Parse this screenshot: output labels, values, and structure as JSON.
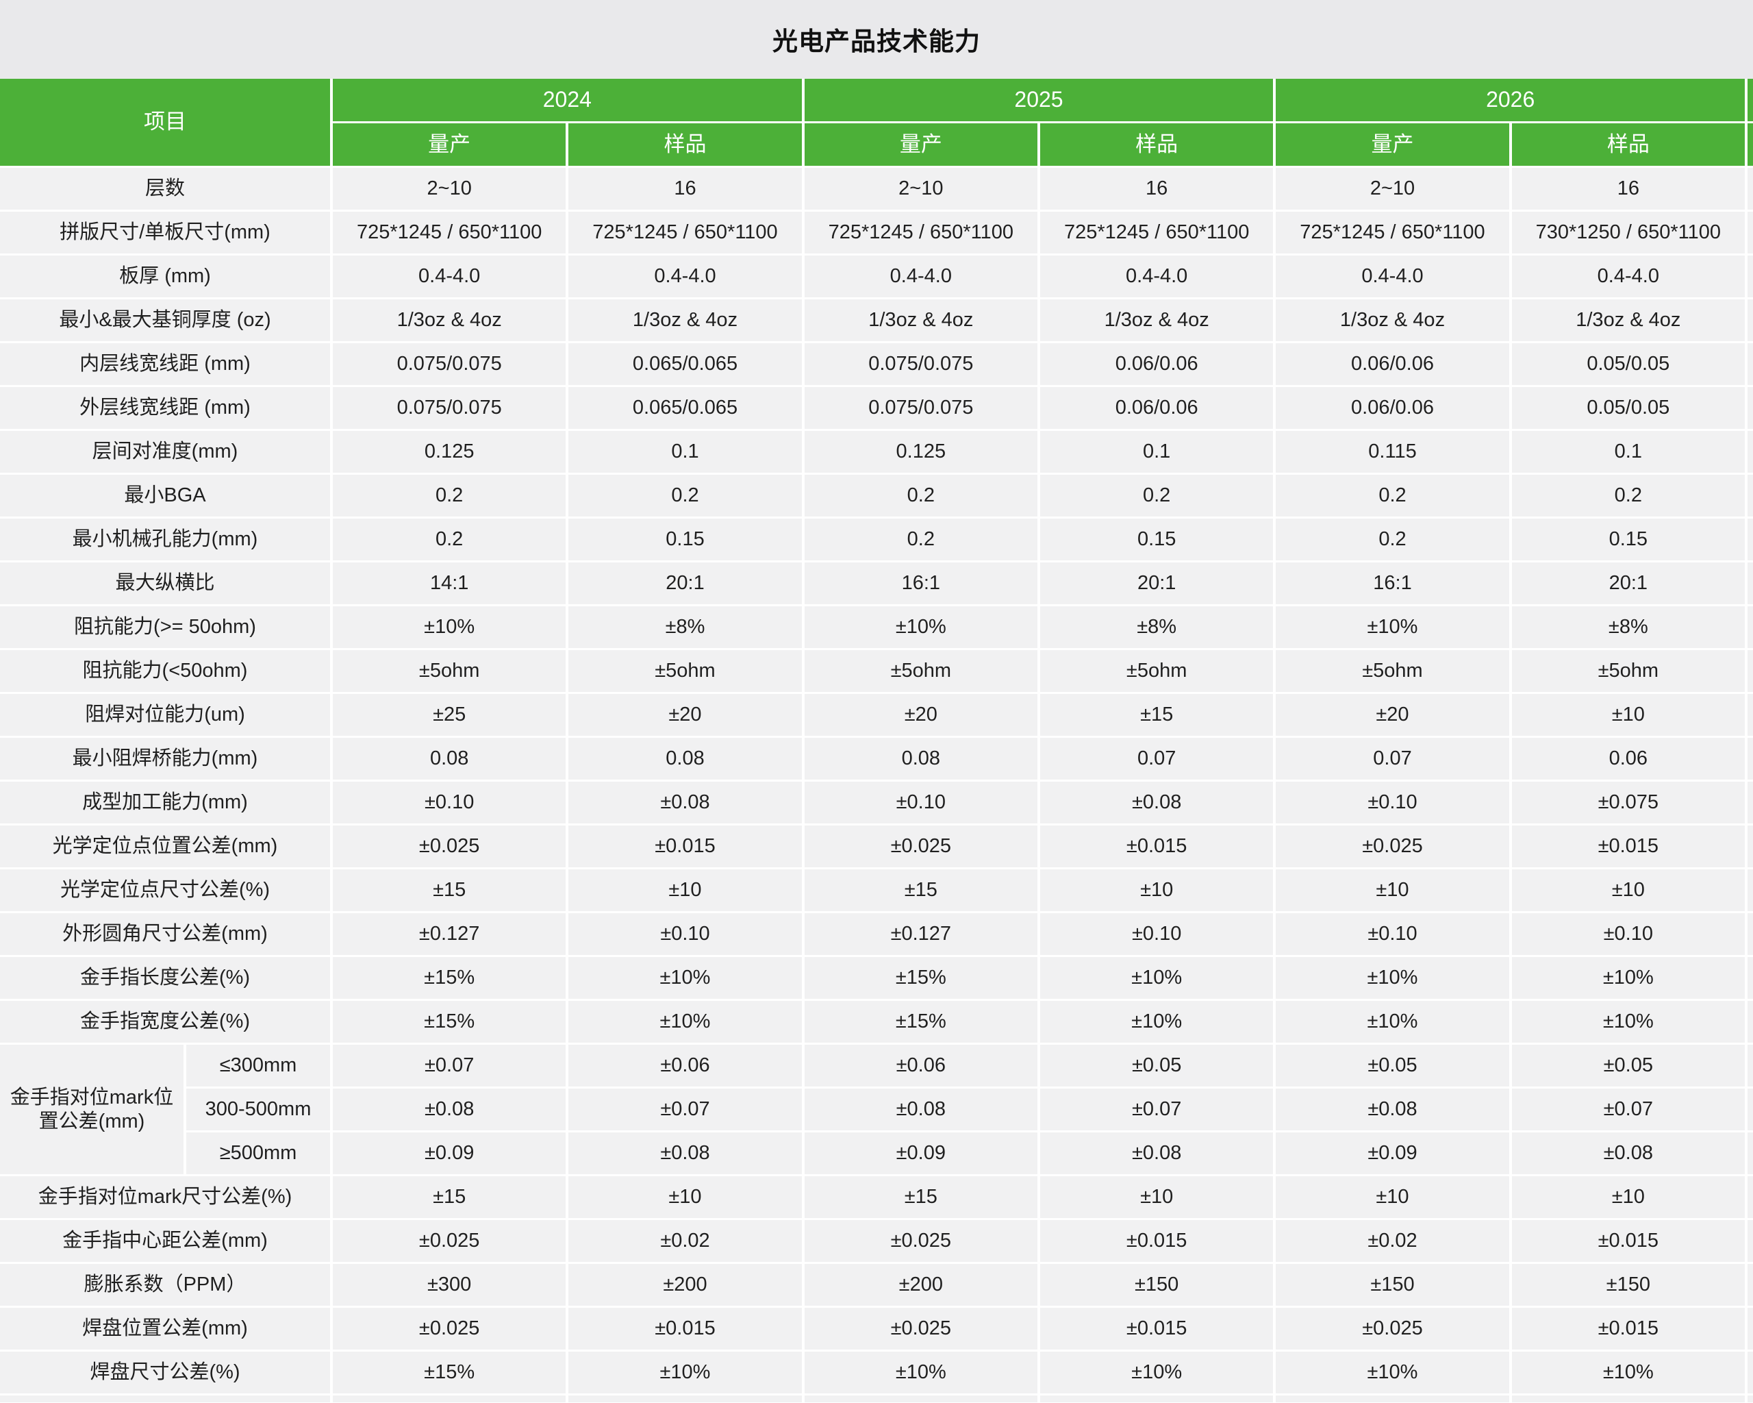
{
  "title": "光电产品技术能力",
  "colors": {
    "header_green": "#4cb038",
    "cell_background": "#f1f1f2",
    "page_background": "#e9e9eb",
    "grid_line": "#ffffff",
    "text": "#1f1f1f"
  },
  "header": {
    "item_label": "项目",
    "years": [
      "2024",
      "2025",
      "2026"
    ],
    "sub_labels": [
      "量产",
      "样品"
    ]
  },
  "rows_top": [
    {
      "label": "层数",
      "values": [
        "2~10",
        "16",
        "2~10",
        "16",
        "2~10",
        "16"
      ]
    },
    {
      "label": "拼版尺寸/单板尺寸(mm)",
      "values": [
        "725*1245 / 650*1100",
        "725*1245 / 650*1100",
        "725*1245 / 650*1100",
        "725*1245 / 650*1100",
        "725*1245 / 650*1100",
        "730*1250 / 650*1100"
      ]
    },
    {
      "label": "板厚 (mm)",
      "values": [
        "0.4-4.0",
        "0.4-4.0",
        "0.4-4.0",
        "0.4-4.0",
        "0.4-4.0",
        "0.4-4.0"
      ]
    },
    {
      "label": "最小&最大基铜厚度 (oz)",
      "values": [
        "1/3oz & 4oz",
        "1/3oz & 4oz",
        "1/3oz & 4oz",
        "1/3oz & 4oz",
        "1/3oz & 4oz",
        "1/3oz & 4oz"
      ]
    },
    {
      "label": "内层线宽线距 (mm)",
      "values": [
        "0.075/0.075",
        "0.065/0.065",
        "0.075/0.075",
        "0.06/0.06",
        "0.06/0.06",
        "0.05/0.05"
      ]
    },
    {
      "label": "外层线宽线距 (mm)",
      "values": [
        "0.075/0.075",
        "0.065/0.065",
        "0.075/0.075",
        "0.06/0.06",
        "0.06/0.06",
        "0.05/0.05"
      ]
    },
    {
      "label": "层间对准度(mm)",
      "values": [
        "0.125",
        "0.1",
        "0.125",
        "0.1",
        "0.115",
        "0.1"
      ]
    },
    {
      "label": "最小BGA",
      "values": [
        "0.2",
        "0.2",
        "0.2",
        "0.2",
        "0.2",
        "0.2"
      ]
    },
    {
      "label": "最小机械孔能力(mm)",
      "values": [
        "0.2",
        "0.15",
        "0.2",
        "0.15",
        "0.2",
        "0.15"
      ]
    },
    {
      "label": "最大纵横比",
      "values": [
        "14:1",
        "20:1",
        "16:1",
        "20:1",
        "16:1",
        "20:1"
      ]
    },
    {
      "label": "阻抗能力(>= 50ohm)",
      "values": [
        "±10%",
        "±8%",
        "±10%",
        "±8%",
        "±10%",
        "±8%"
      ]
    },
    {
      "label": "阻抗能力(<50ohm)",
      "values": [
        "±5ohm",
        "±5ohm",
        "±5ohm",
        "±5ohm",
        "±5ohm",
        "±5ohm"
      ]
    },
    {
      "label": "阻焊对位能力(um)",
      "values": [
        "±25",
        "±20",
        "±20",
        "±15",
        "±20",
        "±10"
      ]
    },
    {
      "label": "最小阻焊桥能力(mm)",
      "values": [
        "0.08",
        "0.08",
        "0.08",
        "0.07",
        "0.07",
        "0.06"
      ]
    },
    {
      "label": "成型加工能力(mm)",
      "values": [
        "±0.10",
        "±0.08",
        "±0.10",
        "±0.08",
        "±0.10",
        "±0.075"
      ]
    },
    {
      "label": "光学定位点位置公差(mm)",
      "values": [
        "±0.025",
        "±0.015",
        "±0.025",
        "±0.015",
        "±0.025",
        "±0.015"
      ]
    },
    {
      "label": "光学定位点尺寸公差(%)",
      "values": [
        "±15",
        "±10",
        "±15",
        "±10",
        "±10",
        "±10"
      ]
    },
    {
      "label": "外形圆角尺寸公差(mm)",
      "values": [
        "±0.127",
        "±0.10",
        "±0.127",
        "±0.10",
        "±0.10",
        "±0.10"
      ]
    },
    {
      "label": "金手指长度公差(%)",
      "values": [
        "±15%",
        "±10%",
        "±15%",
        "±10%",
        "±10%",
        "±10%"
      ]
    },
    {
      "label": "金手指宽度公差(%)",
      "values": [
        "±15%",
        "±10%",
        "±15%",
        "±10%",
        "±10%",
        "±10%"
      ]
    }
  ],
  "mark_group": {
    "label": "金手指对位mark位置公差(mm)",
    "rows": [
      {
        "sub": "≤300mm",
        "values": [
          "±0.07",
          "±0.06",
          "±0.06",
          "±0.05",
          "±0.05",
          "±0.05"
        ]
      },
      {
        "sub": "300-500mm",
        "values": [
          "±0.08",
          "±0.07",
          "±0.08",
          "±0.07",
          "±0.08",
          "±0.07"
        ]
      },
      {
        "sub": "≥500mm",
        "values": [
          "±0.09",
          "±0.08",
          "±0.09",
          "±0.08",
          "±0.09",
          "±0.08"
        ]
      }
    ]
  },
  "rows_bottom": [
    {
      "label": "金手指对位mark尺寸公差(%)",
      "values": [
        "±15",
        "±10",
        "±15",
        "±10",
        "±10",
        "±10"
      ]
    },
    {
      "label": "金手指中心距公差(mm)",
      "values": [
        "±0.025",
        "±0.02",
        "±0.025",
        "±0.015",
        "±0.02",
        "±0.015"
      ]
    },
    {
      "label": "膨胀系数（PPM）",
      "values": [
        "±300",
        "±200",
        "±200",
        "±150",
        "±150",
        "±150"
      ]
    },
    {
      "label": "焊盘位置公差(mm)",
      "values": [
        "±0.025",
        "±0.015",
        "±0.025",
        "±0.015",
        "±0.025",
        "±0.015"
      ]
    },
    {
      "label": "焊盘尺寸公差(%)",
      "values": [
        "±15%",
        "±10%",
        "±10%",
        "±10%",
        "±10%",
        "±10%"
      ]
    }
  ]
}
